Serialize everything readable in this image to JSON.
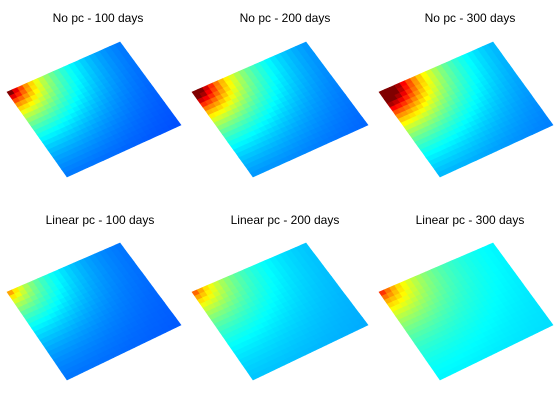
{
  "chart_data": [
    {
      "type": "heatmap",
      "title": "No pc - 100 days",
      "hot_corner": "left",
      "intensity": 1.0,
      "base_level": 0.18
    },
    {
      "type": "heatmap",
      "title": "No pc - 200 days",
      "hot_corner": "left",
      "intensity": 1.15,
      "base_level": 0.2
    },
    {
      "type": "heatmap",
      "title": "No pc - 300 days",
      "hot_corner": "left",
      "intensity": 1.35,
      "base_level": 0.22
    },
    {
      "type": "heatmap",
      "title": "Linear pc - 100 days",
      "hot_corner": "left",
      "intensity": 0.62,
      "base_level": 0.2
    },
    {
      "type": "heatmap",
      "title": "Linear pc - 200 days",
      "hot_corner": "left",
      "intensity": 0.6,
      "base_level": 0.28
    },
    {
      "type": "heatmap",
      "title": "Linear pc - 300 days",
      "hot_corner": "left",
      "intensity": 0.6,
      "base_level": 0.33
    }
  ],
  "colormap": [
    "#00008f",
    "#0000ff",
    "#0080ff",
    "#00ffff",
    "#80ff80",
    "#ffff00",
    "#ff8000",
    "#ff0000",
    "#800000"
  ]
}
